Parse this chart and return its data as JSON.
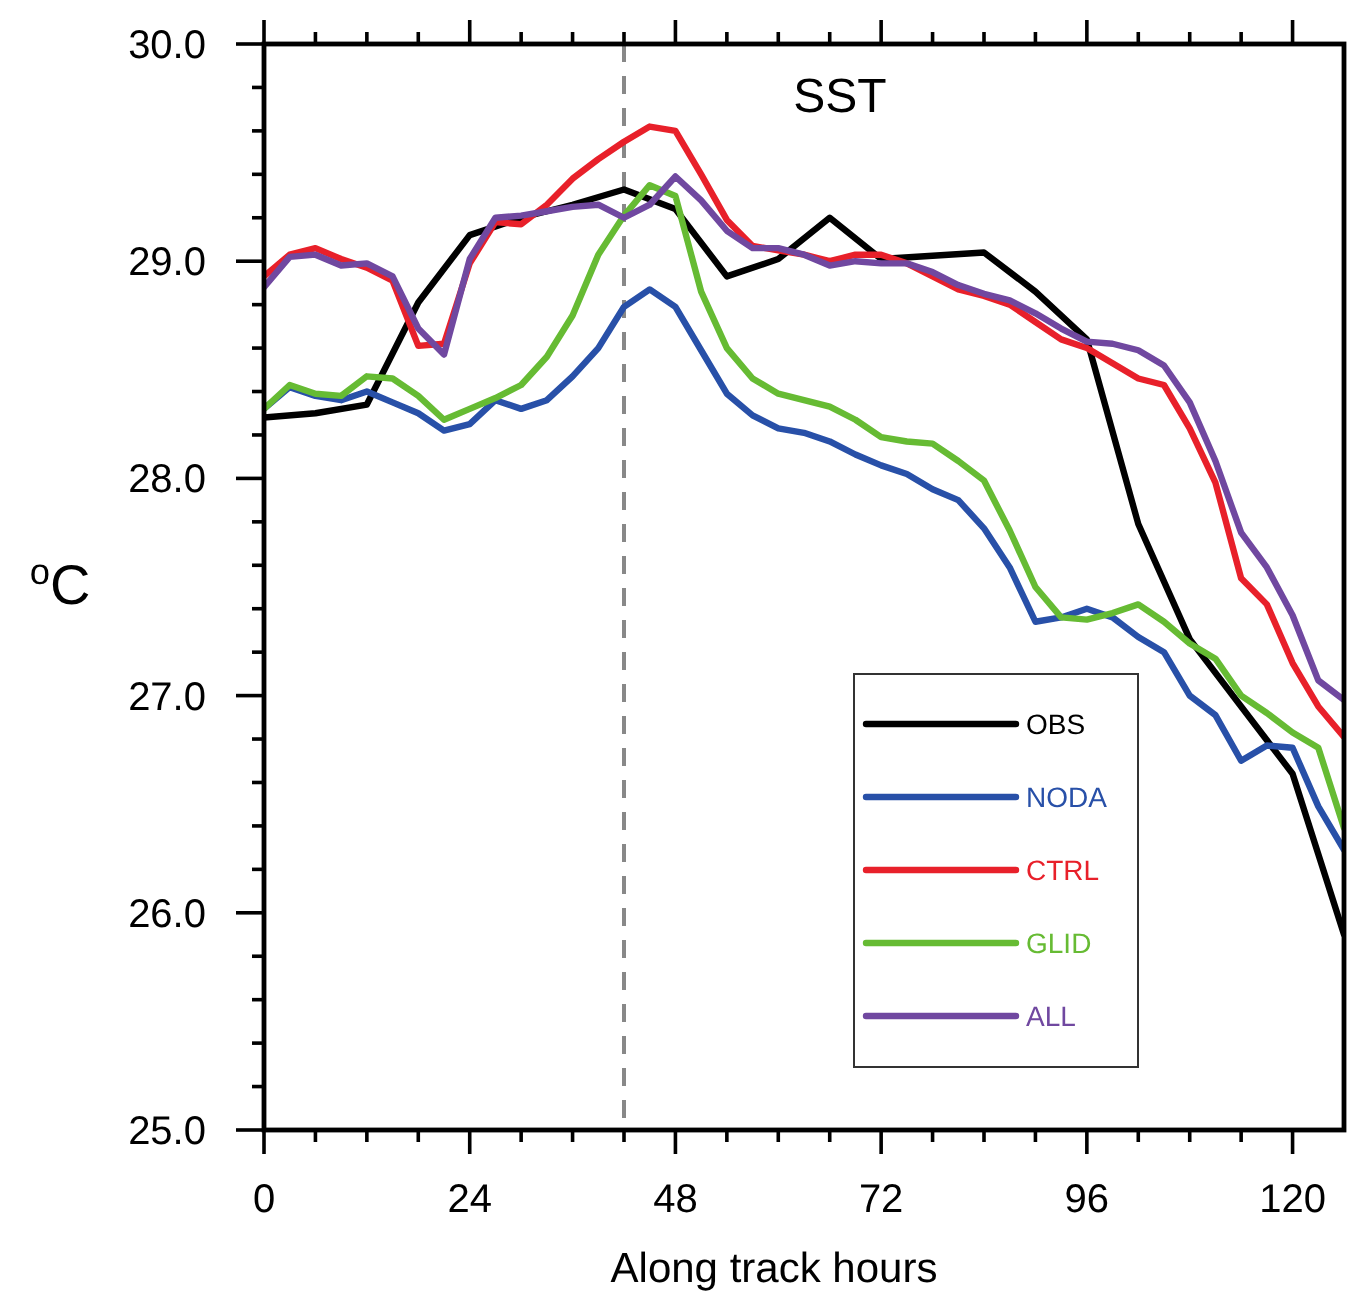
{
  "chart_data": {
    "type": "line",
    "title": "SST",
    "xlabel": "Along track hours",
    "ylabel": "$^{o}$C",
    "x": [
      0,
      3,
      6,
      9,
      12,
      15,
      18,
      21,
      24,
      27,
      30,
      33,
      36,
      39,
      42,
      45,
      48,
      51,
      54,
      57,
      60,
      63,
      66,
      69,
      72,
      75,
      78,
      81,
      84,
      87,
      90,
      93,
      96,
      99,
      102,
      105,
      108,
      111,
      114,
      117,
      120,
      123,
      126
    ],
    "xlim": [
      0,
      126
    ],
    "xticks": [
      0,
      {
        "value": 6,
        "label": null
      },
      {
        "value": 12,
        "label": null
      },
      {
        "value": 18,
        "label": null
      },
      24,
      {
        "value": 30,
        "label": null
      },
      {
        "value": 36,
        "label": null
      },
      {
        "value": 42,
        "label": null
      },
      48,
      {
        "value": 54,
        "label": null
      },
      {
        "value": 60,
        "label": null
      },
      {
        "value": 66,
        "label": null
      },
      72,
      {
        "value": 78,
        "label": null
      },
      {
        "value": 84,
        "label": null
      },
      {
        "value": 90,
        "label": null
      },
      96,
      {
        "value": 102,
        "label": null
      },
      {
        "value": 108,
        "label": null
      },
      {
        "value": 114,
        "label": null
      },
      120
    ],
    "ylim": [
      25,
      30
    ],
    "yticks": [
      {
        "value": 25,
        "label": "25.0"
      },
      {
        "value": 25.2,
        "label": null
      },
      {
        "value": 25.4,
        "label": null
      },
      {
        "value": 25.6,
        "label": null
      },
      {
        "value": 25.8,
        "label": null
      },
      {
        "value": 26,
        "label": "26.0"
      },
      {
        "value": 26.2,
        "label": null
      },
      {
        "value": 26.4,
        "label": null
      },
      {
        "value": 26.6,
        "label": null
      },
      {
        "value": 26.8,
        "label": null
      },
      {
        "value": 27,
        "label": "27.0"
      },
      {
        "value": 27.2,
        "label": null
      },
      {
        "value": 27.4,
        "label": null
      },
      {
        "value": 27.6,
        "label": null
      },
      {
        "value": 27.8,
        "label": null
      },
      {
        "value": 28,
        "label": "28.0"
      },
      {
        "value": 28.2,
        "label": null
      },
      {
        "value": 28.4,
        "label": null
      },
      {
        "value": 28.6,
        "label": null
      },
      {
        "value": 28.8,
        "label": null
      },
      {
        "value": 29,
        "label": "29.0"
      },
      {
        "value": 29.2,
        "label": null
      },
      {
        "value": 29.4,
        "label": null
      },
      {
        "value": 29.6,
        "label": null
      },
      {
        "value": 29.8,
        "label": null
      },
      {
        "value": 30,
        "label": "30.0"
      }
    ],
    "legend": "bottom right",
    "grid": false,
    "line_style": "solid",
    "marker": "none",
    "ref_lines": [
      {
        "axis": "x",
        "value": 42,
        "color": "#888888",
        "line_style": "dashed"
      }
    ],
    "series": [
      {
        "name": "OBS",
        "color": "#000000",
        "x": [
          0,
          6,
          12,
          18,
          24,
          30,
          36,
          42,
          48,
          54,
          60,
          66,
          72,
          84,
          90,
          96,
          102,
          108,
          114,
          120,
          126
        ],
        "values": [
          28.28,
          28.3,
          28.34,
          28.81,
          29.12,
          29.2,
          29.26,
          29.33,
          29.24,
          28.93,
          29.01,
          29.2,
          29.01,
          29.04,
          28.86,
          28.64,
          27.79,
          27.26,
          26.95,
          26.64,
          25.9
        ]
      },
      {
        "name": "NODA",
        "color": "#2850a8",
        "values": [
          28.32,
          28.42,
          28.38,
          28.36,
          28.4,
          28.35,
          28.3,
          28.22,
          28.25,
          28.36,
          28.32,
          28.36,
          28.47,
          28.6,
          28.79,
          28.87,
          28.79,
          28.59,
          28.39,
          28.29,
          28.23,
          28.21,
          28.17,
          28.11,
          28.06,
          28.02,
          27.95,
          27.9,
          27.77,
          27.59,
          27.34,
          27.36,
          27.4,
          27.36,
          27.27,
          27.2,
          27.0,
          26.91,
          26.7,
          26.77,
          26.76,
          26.49,
          26.29
        ]
      },
      {
        "name": "CTRL",
        "color": "#e8202a",
        "values": [
          28.93,
          29.03,
          29.06,
          29.01,
          28.97,
          28.91,
          28.61,
          28.62,
          28.99,
          29.18,
          29.17,
          29.26,
          29.38,
          29.47,
          29.55,
          29.62,
          29.6,
          29.4,
          29.19,
          29.07,
          29.05,
          29.03,
          29.0,
          29.03,
          29.03,
          28.99,
          28.93,
          28.87,
          28.84,
          28.8,
          28.72,
          28.64,
          28.6,
          28.53,
          28.46,
          28.43,
          28.23,
          27.98,
          27.54,
          27.42,
          27.15,
          26.95,
          26.81
        ]
      },
      {
        "name": "GLID",
        "color": "#66bb33",
        "values": [
          28.32,
          28.43,
          28.39,
          28.38,
          28.47,
          28.46,
          28.38,
          28.27,
          28.32,
          28.37,
          28.43,
          28.56,
          28.75,
          29.03,
          29.21,
          29.35,
          29.3,
          28.86,
          28.6,
          28.46,
          28.39,
          28.36,
          28.33,
          28.27,
          28.19,
          28.17,
          28.16,
          28.08,
          27.99,
          27.76,
          27.5,
          27.36,
          27.35,
          27.38,
          27.42,
          27.34,
          27.24,
          27.17,
          27.0,
          26.92,
          26.83,
          26.76,
          26.39
        ]
      },
      {
        "name": "ALL",
        "color": "#7048a0",
        "values": [
          28.88,
          29.02,
          29.03,
          28.98,
          28.99,
          28.93,
          28.69,
          28.57,
          29.01,
          29.2,
          29.21,
          29.23,
          29.25,
          29.26,
          29.2,
          29.26,
          29.39,
          29.28,
          29.14,
          29.06,
          29.06,
          29.03,
          28.98,
          29.0,
          28.99,
          28.99,
          28.95,
          28.89,
          28.85,
          28.82,
          28.76,
          28.69,
          28.63,
          28.62,
          28.59,
          28.52,
          28.35,
          28.08,
          27.75,
          27.59,
          27.37,
          27.07,
          26.98
        ]
      }
    ]
  }
}
